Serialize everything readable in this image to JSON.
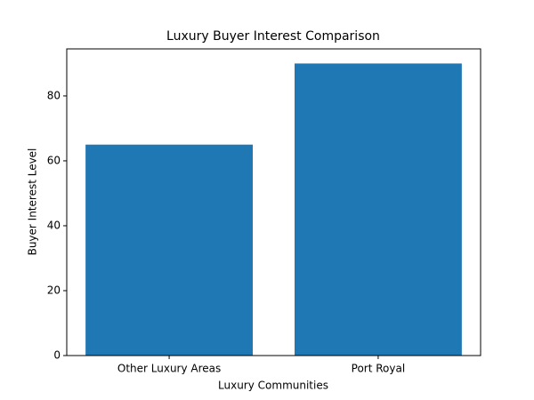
{
  "chart_data": {
    "type": "bar",
    "title": "Luxury Buyer Interest Comparison",
    "xlabel": "Luxury Communities",
    "ylabel": "Buyer Interest Level",
    "categories": [
      "Other Luxury Areas",
      "Port Royal"
    ],
    "values": [
      65,
      90
    ],
    "color": "#1f77b4",
    "ylim": [
      0,
      94.5
    ],
    "yticks": [
      0,
      20,
      40,
      60,
      80
    ],
    "grid": false
  }
}
